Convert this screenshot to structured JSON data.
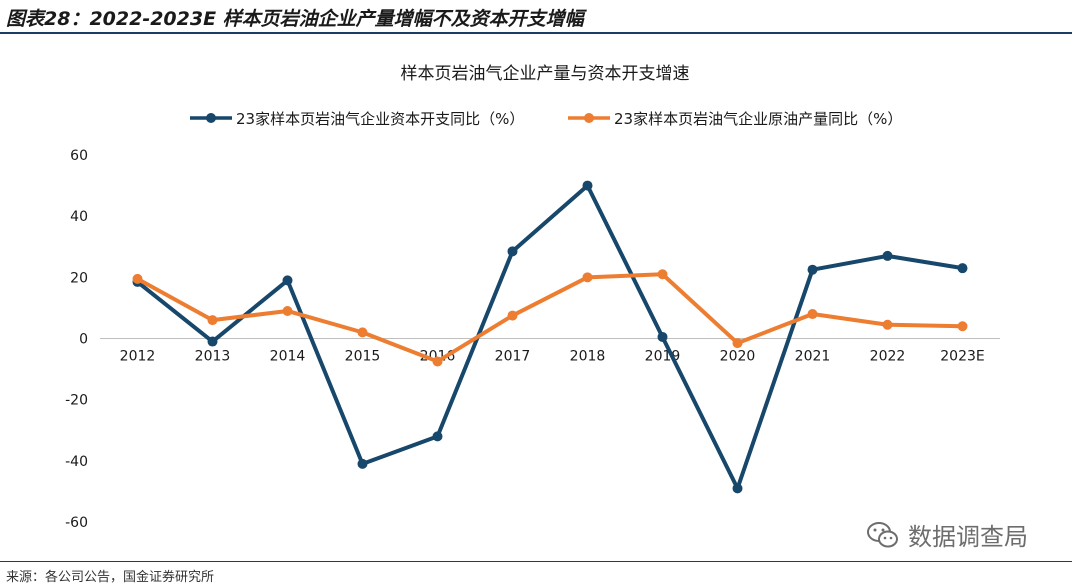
{
  "figure_title": "图表28：2022-2023E 样本页岩油企业产量增幅不及资本开支增幅",
  "source": "来源：各公司公告，国金证券研究所",
  "watermark": "数据调查局",
  "watermark_icon": "wechat-icon",
  "colors": {
    "capex": "#17476b",
    "production": "#ed7d31",
    "rule": "#1b3d63"
  },
  "chart_data": {
    "type": "line",
    "title": "样本页岩油气企业产量与资本开支增速",
    "xlabel": "",
    "ylabel": "",
    "categories": [
      "2012",
      "2013",
      "2014",
      "2015",
      "2016",
      "2017",
      "2018",
      "2019",
      "2020",
      "2021",
      "2022",
      "2023E"
    ],
    "ylim": [
      -60,
      60
    ],
    "yticks": [
      "60",
      "40",
      "20",
      "0",
      "-20",
      "-40",
      "-60"
    ],
    "grid": false,
    "legend_position": "top",
    "series": [
      {
        "name": "23家样本页岩油气企业资本开支同比（%）",
        "color": "#17476b",
        "values": [
          18.5,
          -1,
          19,
          -41,
          -32,
          28.5,
          50,
          0.5,
          -49,
          22.5,
          27,
          23
        ]
      },
      {
        "name": "23家样本页岩油气企业原油产量同比（%）",
        "color": "#ed7d31",
        "values": [
          19.5,
          6,
          9,
          2,
          -7.5,
          7.5,
          20,
          21,
          -1.5,
          8,
          4.5,
          4
        ]
      }
    ]
  }
}
